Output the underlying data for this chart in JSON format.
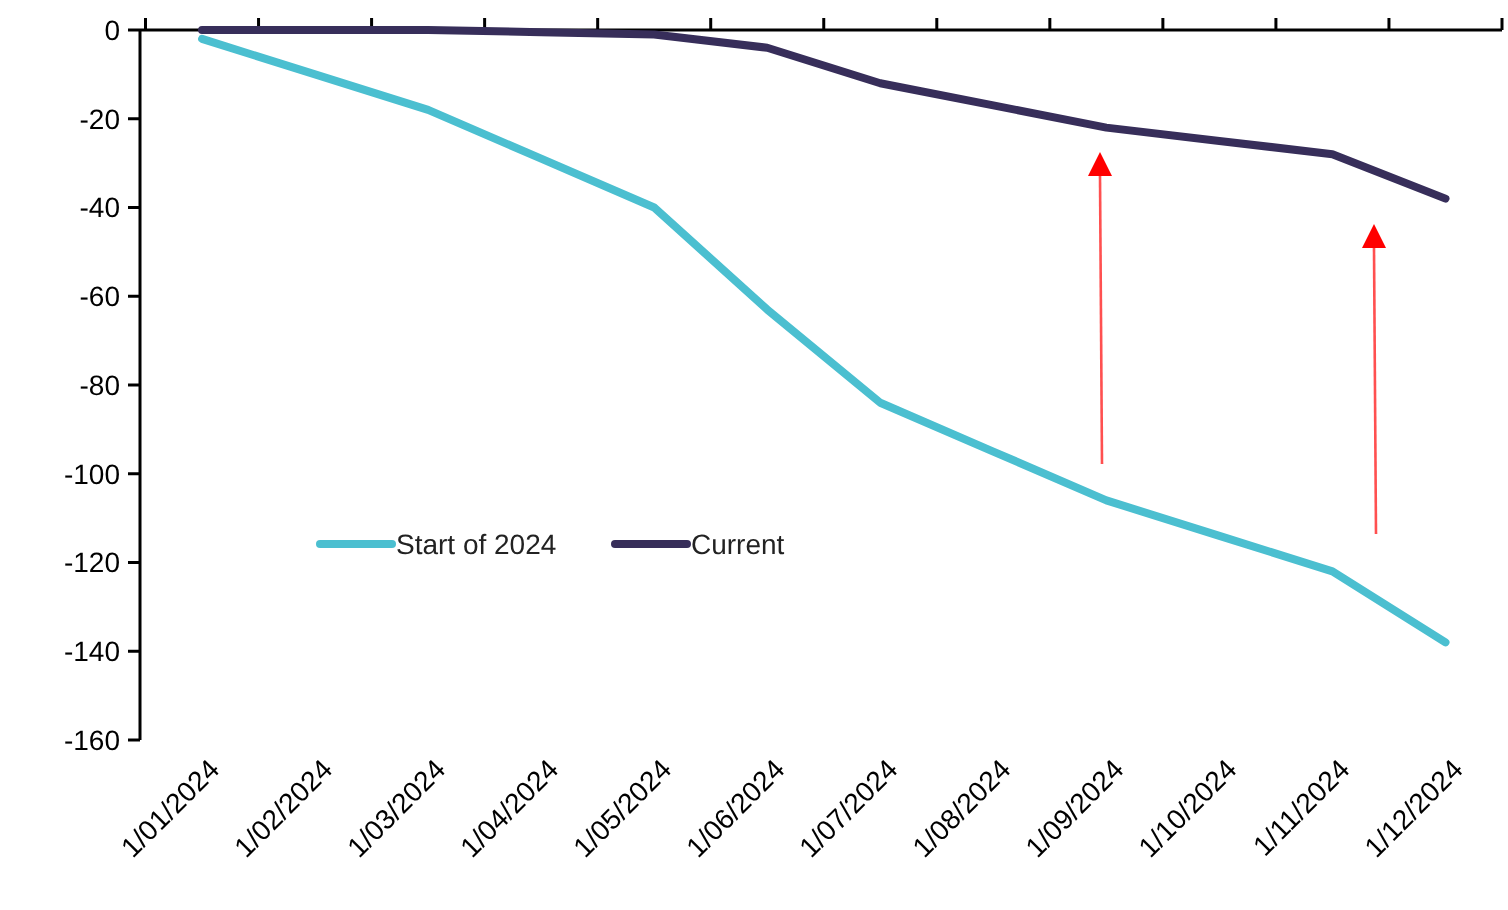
{
  "chart_data": {
    "type": "line",
    "categories": [
      "1/01/2024",
      "1/02/2024",
      "1/03/2024",
      "1/04/2024",
      "1/05/2024",
      "1/06/2024",
      "1/07/2024",
      "1/08/2024",
      "1/09/2024",
      "1/10/2024",
      "1/11/2024",
      "1/12/2024"
    ],
    "series": [
      {
        "name": "Start of 2024",
        "color": "#4bbfd0",
        "values": [
          -2,
          -10,
          -18,
          -29,
          -40,
          -63,
          -84,
          -95,
          -106,
          -114,
          -122,
          -138
        ]
      },
      {
        "name": "Current",
        "color": "#372e5a",
        "values": [
          0,
          0,
          0,
          -0.5,
          -1,
          -4,
          -12,
          -17,
          -22,
          -25,
          -28,
          -38
        ]
      }
    ],
    "ylim": [
      -160,
      0
    ],
    "yticks": [
      -160,
      -140,
      -120,
      -100,
      -80,
      -60,
      -40,
      -20,
      0
    ],
    "grid": false,
    "legend": "bottom",
    "marker": "none",
    "line_style": "solid"
  }
}
